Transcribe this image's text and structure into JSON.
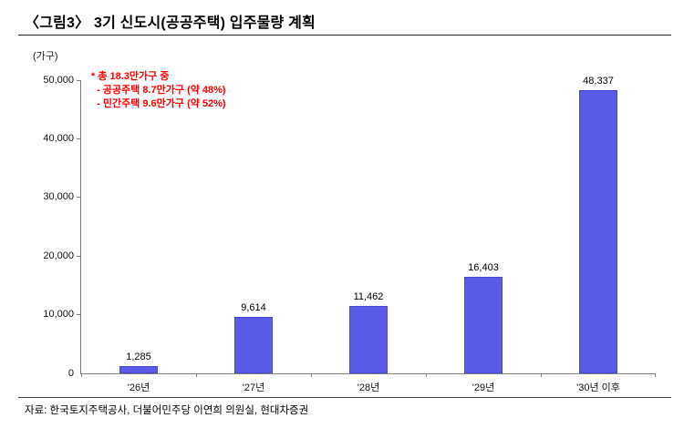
{
  "header": {
    "title": "〈그림3〉 3기 신도시(공공주택) 입주물량 계획"
  },
  "chart_data": {
    "type": "bar",
    "title": "3기 신도시(공공주택) 입주물량 계획",
    "xlabel": "",
    "ylabel": "(가구)",
    "unit_label": "(가구)",
    "categories": [
      "'26년",
      "'27년",
      "'28년",
      "'29년",
      "'30년 이후"
    ],
    "values": [
      1285,
      9614,
      11462,
      16403,
      48337
    ],
    "value_labels": [
      "1,285",
      "9,614",
      "11,462",
      "16,403",
      "48,337"
    ],
    "ylim": [
      0,
      50000
    ],
    "yticks": [
      0,
      10000,
      20000,
      30000,
      40000,
      50000
    ],
    "ytick_labels": [
      "0",
      "10,000",
      "20,000",
      "30,000",
      "40,000",
      "50,000"
    ],
    "grid": false,
    "legend_position": "none",
    "bar_color": "#5b5be8",
    "annotation": {
      "color": "#ff0000",
      "lines": [
        "* 총 18.3만가구 중",
        "  - 공공주택 8.7만가구 (약 48%)",
        "  - 민간주택 9.6만가구 (약 52%)"
      ]
    }
  },
  "footer": {
    "source": "자료: 한국토지주택공사, 더불어민주당 이연희 의원실, 현대차증권"
  }
}
